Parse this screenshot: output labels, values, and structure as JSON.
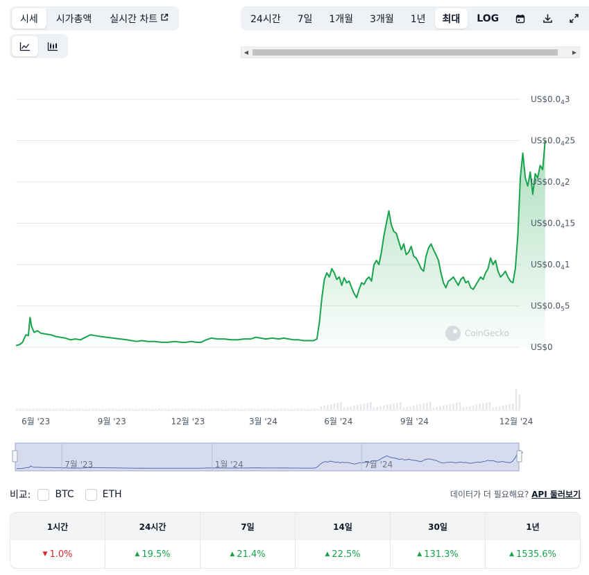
{
  "view_tabs": [
    {
      "label": "시세",
      "active": true
    },
    {
      "label": "시가총액",
      "active": false
    },
    {
      "label": "실시간 차트",
      "active": false,
      "external": true
    }
  ],
  "range_tabs": [
    {
      "label": "24시간",
      "active": false
    },
    {
      "label": "7일",
      "active": false
    },
    {
      "label": "1개월",
      "active": false
    },
    {
      "label": "3개월",
      "active": false
    },
    {
      "label": "1년",
      "active": false
    },
    {
      "label": "최대",
      "active": true
    },
    {
      "label": "LOG",
      "active": false
    }
  ],
  "toolbar_icons": [
    "calendar-icon",
    "download-icon",
    "expand-icon"
  ],
  "chart_types": [
    {
      "name": "line-chart-icon",
      "active": true
    },
    {
      "name": "candlestick-chart-icon",
      "active": false
    }
  ],
  "chart_data": {
    "type": "area",
    "x_ticks": [
      "6월 '23",
      "9월 '23",
      "12월 '23",
      "3월 '24",
      "6월 '24",
      "9월 '24",
      "12월 '24"
    ],
    "y_ticks": [
      {
        "prefix": "US$0",
        "value": 0
      },
      {
        "prefix": "US$0.0",
        "sub": "5",
        "rest": "5",
        "value": 0.5
      },
      {
        "prefix": "US$0.0",
        "sub": "4",
        "rest": "1",
        "value": 1
      },
      {
        "prefix": "US$0.0",
        "sub": "4",
        "rest": "15",
        "value": 1.5
      },
      {
        "prefix": "US$0.0",
        "sub": "4",
        "rest": "2",
        "value": 2
      },
      {
        "prefix": "US$0.0",
        "sub": "4",
        "rest": "25",
        "value": 2.5
      },
      {
        "prefix": "US$0.0",
        "sub": "4",
        "rest": "3",
        "value": 3
      }
    ],
    "y_unit_note": "values in units of US$0.00001",
    "ylim": [
      0,
      3
    ],
    "x_range_days": [
      0,
      610
    ],
    "series": [
      {
        "points": [
          [
            0,
            0.02
          ],
          [
            4,
            0.03
          ],
          [
            8,
            0.06
          ],
          [
            12,
            0.15
          ],
          [
            15,
            0.14
          ],
          [
            17,
            0.36
          ],
          [
            19,
            0.25
          ],
          [
            22,
            0.18
          ],
          [
            26,
            0.2
          ],
          [
            30,
            0.17
          ],
          [
            36,
            0.16
          ],
          [
            42,
            0.15
          ],
          [
            48,
            0.13
          ],
          [
            54,
            0.12
          ],
          [
            60,
            0.11
          ],
          [
            66,
            0.09
          ],
          [
            72,
            0.1
          ],
          [
            78,
            0.09
          ],
          [
            84,
            0.12
          ],
          [
            90,
            0.15
          ],
          [
            96,
            0.14
          ],
          [
            102,
            0.13
          ],
          [
            110,
            0.12
          ],
          [
            118,
            0.11
          ],
          [
            126,
            0.1
          ],
          [
            134,
            0.09
          ],
          [
            140,
            0.08
          ],
          [
            146,
            0.07
          ],
          [
            152,
            0.08
          ],
          [
            160,
            0.07
          ],
          [
            168,
            0.07
          ],
          [
            176,
            0.06
          ],
          [
            184,
            0.06
          ],
          [
            192,
            0.07
          ],
          [
            200,
            0.06
          ],
          [
            206,
            0.06
          ],
          [
            212,
            0.07
          ],
          [
            218,
            0.06
          ],
          [
            224,
            0.06
          ],
          [
            230,
            0.09
          ],
          [
            236,
            0.11
          ],
          [
            244,
            0.1
          ],
          [
            252,
            0.1
          ],
          [
            260,
            0.09
          ],
          [
            268,
            0.09
          ],
          [
            276,
            0.1
          ],
          [
            284,
            0.1
          ],
          [
            290,
            0.12
          ],
          [
            296,
            0.11
          ],
          [
            302,
            0.1
          ],
          [
            310,
            0.11
          ],
          [
            318,
            0.1
          ],
          [
            324,
            0.11
          ],
          [
            330,
            0.1
          ],
          [
            336,
            0.09
          ],
          [
            342,
            0.09
          ],
          [
            348,
            0.08
          ],
          [
            354,
            0.08
          ],
          [
            360,
            0.08
          ],
          [
            364,
            0.1
          ],
          [
            367,
            0.3
          ],
          [
            370,
            0.6
          ],
          [
            373,
            0.82
          ],
          [
            376,
            0.9
          ],
          [
            379,
            0.85
          ],
          [
            382,
            0.95
          ],
          [
            385,
            0.9
          ],
          [
            388,
            0.82
          ],
          [
            391,
            0.85
          ],
          [
            394,
            0.75
          ],
          [
            397,
            0.84
          ],
          [
            400,
            0.78
          ],
          [
            403,
            0.8
          ],
          [
            406,
            0.72
          ],
          [
            409,
            0.65
          ],
          [
            412,
            0.6
          ],
          [
            415,
            0.7
          ],
          [
            418,
            0.78
          ],
          [
            421,
            0.76
          ],
          [
            424,
            0.82
          ],
          [
            427,
            0.85
          ],
          [
            430,
            0.8
          ],
          [
            433,
            1.0
          ],
          [
            436,
            1.05
          ],
          [
            439,
            1.0
          ],
          [
            442,
            1.15
          ],
          [
            445,
            1.35
          ],
          [
            448,
            1.5
          ],
          [
            451,
            1.65
          ],
          [
            454,
            1.48
          ],
          [
            457,
            1.4
          ],
          [
            460,
            1.38
          ],
          [
            463,
            1.28
          ],
          [
            466,
            1.18
          ],
          [
            469,
            1.25
          ],
          [
            472,
            1.12
          ],
          [
            475,
            1.15
          ],
          [
            478,
            1.22
          ],
          [
            481,
            1.1
          ],
          [
            484,
            1.08
          ],
          [
            487,
            1.02
          ],
          [
            490,
            0.95
          ],
          [
            493,
            0.92
          ],
          [
            496,
            1.1
          ],
          [
            499,
            1.2
          ],
          [
            502,
            1.25
          ],
          [
            505,
            1.18
          ],
          [
            508,
            1.12
          ],
          [
            511,
            1.05
          ],
          [
            514,
            0.9
          ],
          [
            517,
            0.78
          ],
          [
            520,
            0.72
          ],
          [
            523,
            0.8
          ],
          [
            526,
            0.82
          ],
          [
            529,
            0.85
          ],
          [
            532,
            0.8
          ],
          [
            535,
            0.75
          ],
          [
            538,
            0.82
          ],
          [
            541,
            0.85
          ],
          [
            544,
            0.78
          ],
          [
            547,
            0.8
          ],
          [
            550,
            0.72
          ],
          [
            553,
            0.7
          ],
          [
            556,
            0.75
          ],
          [
            559,
            0.8
          ],
          [
            562,
            0.85
          ],
          [
            565,
            0.82
          ],
          [
            568,
            0.9
          ],
          [
            571,
            0.95
          ],
          [
            574,
            1.08
          ],
          [
            577,
            1.0
          ],
          [
            580,
            1.05
          ],
          [
            583,
            0.92
          ],
          [
            586,
            0.85
          ],
          [
            589,
            0.88
          ],
          [
            592,
            0.92
          ],
          [
            595,
            0.85
          ],
          [
            598,
            0.8
          ],
          [
            601,
            0.78
          ],
          [
            604,
            0.95
          ],
          [
            607,
            1.35
          ],
          [
            610,
            2.05
          ],
          [
            613,
            2.35
          ],
          [
            616,
            2.05
          ],
          [
            619,
            1.95
          ],
          [
            622,
            2.12
          ],
          [
            625,
            1.85
          ],
          [
            628,
            2.1
          ],
          [
            631,
            2.05
          ],
          [
            634,
            2.2
          ],
          [
            637,
            2.15
          ],
          [
            640,
            2.5
          ]
        ]
      }
    ]
  },
  "watermark": "CoinGecko",
  "navigator": {
    "labels": [
      "7월 '23",
      "1월 '24",
      "7월 '24"
    ]
  },
  "compare": {
    "label": "비교:",
    "items": [
      "BTC",
      "ETH"
    ]
  },
  "more_data": {
    "text": "데이터가 더 필요해요?",
    "link": "API 둘러보기"
  },
  "performance": [
    {
      "period": "1시간",
      "change": "1.0%",
      "direction": "down"
    },
    {
      "period": "24시간",
      "change": "19.5%",
      "direction": "up"
    },
    {
      "period": "7일",
      "change": "21.4%",
      "direction": "up"
    },
    {
      "period": "14일",
      "change": "22.5%",
      "direction": "up"
    },
    {
      "period": "30일",
      "change": "131.3%",
      "direction": "up"
    },
    {
      "period": "1년",
      "change": "1535.6%",
      "direction": "up"
    }
  ],
  "colors": {
    "line": "#16a34a",
    "nav_line": "#4b6cb7",
    "nav_fill": "#d6dcee",
    "up": "#16a34a",
    "down": "#dc2626"
  }
}
